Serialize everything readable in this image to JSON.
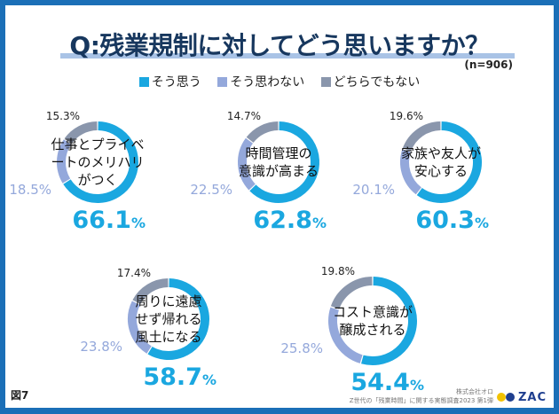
{
  "header": {
    "title": "Q:残業規制に対してどう思いますか？",
    "sample": "(n=906)"
  },
  "footer": {
    "figure": "図7",
    "company": "株式会社オロ",
    "survey": "Z世代の「残業時間」に関する実態調査2023 第1弾",
    "logo": "ZAC",
    "logo_colors": [
      "#f2c200",
      "#1f3f8f"
    ]
  },
  "frame_color": "#1b6fb7",
  "chart_data": {
    "type": "donut",
    "legend": [
      {
        "name": "そう思う",
        "color": "#1aa7e0"
      },
      {
        "name": "そう思わない",
        "color": "#94a8db"
      },
      {
        "name": "どちらでもない",
        "color": "#8a96ac"
      }
    ],
    "legend_position": "top",
    "unit": "%",
    "charts": [
      {
        "label": [
          "仕事とプライベ",
          "ートのメリハリ",
          "がつく"
        ],
        "values": [
          66.1,
          18.5,
          15.3
        ]
      },
      {
        "label": [
          "時間管理の",
          "意識が高まる"
        ],
        "values": [
          62.8,
          22.5,
          14.7
        ]
      },
      {
        "label": [
          "家族や友人が",
          "安心する"
        ],
        "values": [
          60.3,
          20.1,
          19.6
        ]
      },
      {
        "label": [
          "周りに遠慮",
          "せず帰れる",
          "風土になる"
        ],
        "values": [
          58.7,
          23.8,
          17.4
        ]
      },
      {
        "label": [
          "コスト意識が",
          "醸成される"
        ],
        "values": [
          54.4,
          25.8,
          19.8
        ]
      }
    ]
  }
}
